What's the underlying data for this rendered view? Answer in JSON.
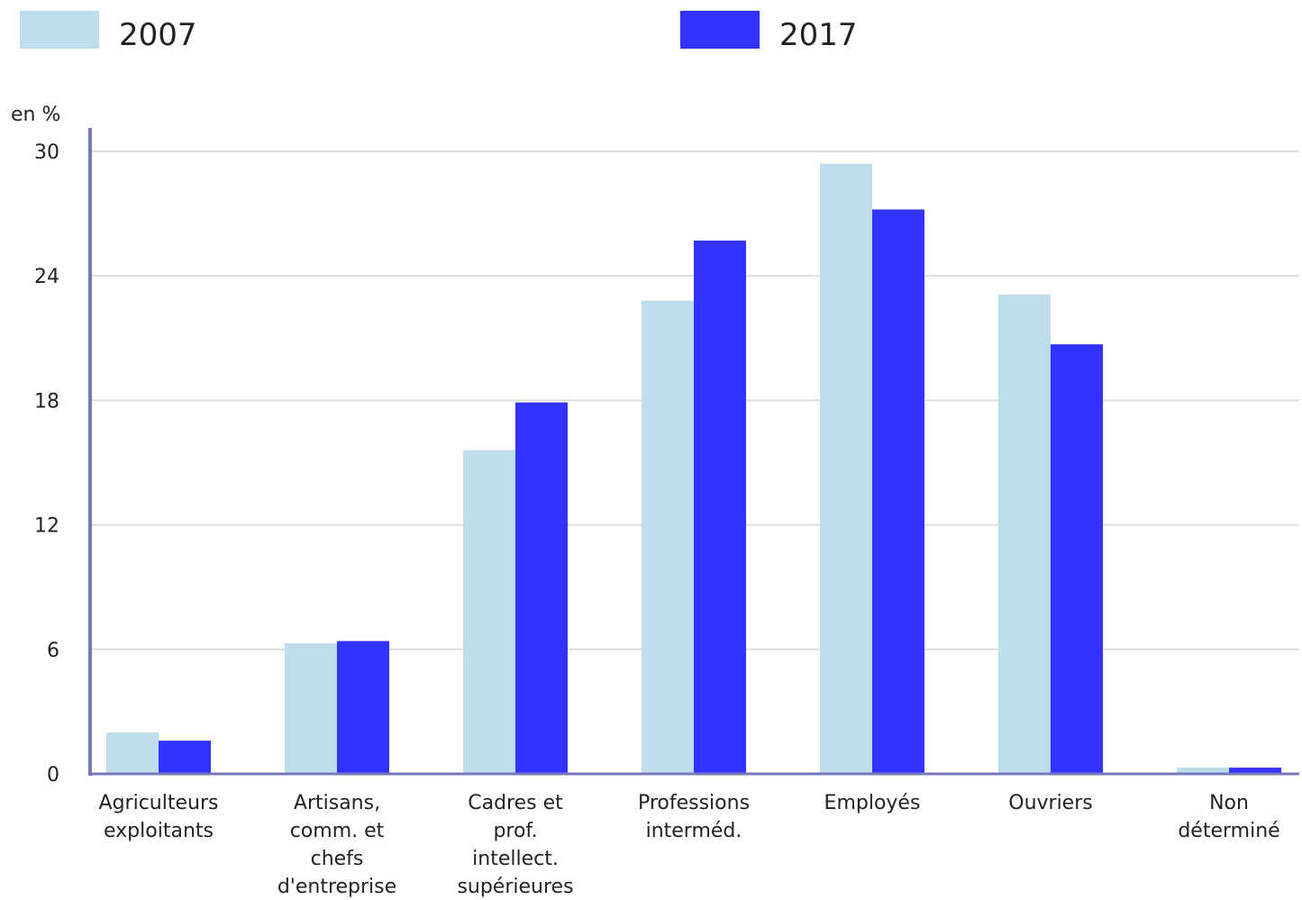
{
  "chart_data": {
    "type": "bar",
    "unit_label": "en %",
    "categories": [
      [
        "Agriculteurs",
        "exploitants"
      ],
      [
        "Artisans,",
        "comm. et",
        "chefs",
        "d'entreprise"
      ],
      [
        "Cadres et",
        "prof.",
        "intellect.",
        "supérieures"
      ],
      [
        "Professions",
        "interméd."
      ],
      [
        "Employés"
      ],
      [
        "Ouvriers"
      ],
      [
        "Non",
        "déterminé"
      ]
    ],
    "series": [
      {
        "name": "2007",
        "color": "#bcdde9",
        "values": [
          2.0,
          6.3,
          15.6,
          22.8,
          29.4,
          23.1,
          0.3
        ]
      },
      {
        "name": "2017",
        "color": "#3333ff",
        "values": [
          1.6,
          6.4,
          17.9,
          25.7,
          27.2,
          20.7,
          0.3
        ]
      }
    ],
    "yticks": [
      0,
      6,
      12,
      18,
      24,
      30
    ],
    "ylim": [
      0,
      30
    ],
    "grid": true,
    "legend_position": "top",
    "axis_color": "#7777bb",
    "grid_color": "#dddddd"
  }
}
